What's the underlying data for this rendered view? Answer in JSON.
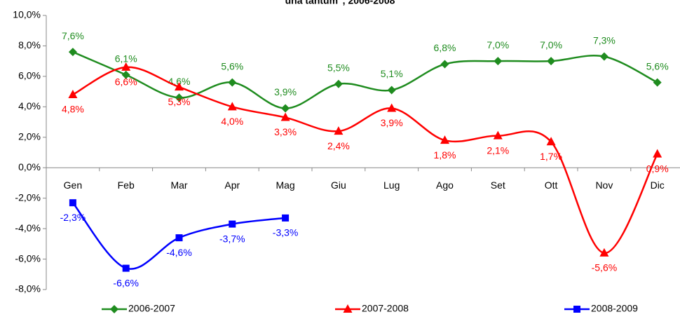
{
  "chart_data": {
    "type": "line",
    "title": "una tantum\", 2006-2008",
    "categories": [
      "Gen",
      "Feb",
      "Mar",
      "Apr",
      "Mag",
      "Giu",
      "Lug",
      "Ago",
      "Set",
      "Ott",
      "Nov",
      "Dic"
    ],
    "ylim": [
      -8,
      10
    ],
    "yticks": [
      {
        "value": -8,
        "label": "-8,0%"
      },
      {
        "value": -6,
        "label": "-6,0%"
      },
      {
        "value": -4,
        "label": "-4,0%"
      },
      {
        "value": -2,
        "label": "-2,0%"
      },
      {
        "value": 0,
        "label": "0,0%"
      },
      {
        "value": 2,
        "label": "2,0%"
      },
      {
        "value": 4,
        "label": "4,0%"
      },
      {
        "value": 6,
        "label": "6,0%"
      },
      {
        "value": 8,
        "label": "8,0%"
      },
      {
        "value": 10,
        "label": "10,0%"
      }
    ],
    "smooth": true,
    "legend": "bottom",
    "series": [
      {
        "name": "2006-2007",
        "color": "#1f8c1f",
        "marker": "diamond",
        "label_position": "above",
        "values": [
          7.6,
          6.1,
          4.6,
          5.6,
          3.9,
          5.5,
          5.1,
          6.8,
          7.0,
          7.0,
          7.3,
          5.6
        ],
        "value_labels": [
          "7,6%",
          "6,1%",
          "4,6%",
          "5,6%",
          "3,9%",
          "5,5%",
          "5,1%",
          "6,8%",
          "7,0%",
          "7,0%",
          "7,3%",
          "5,6%"
        ]
      },
      {
        "name": "2007-2008",
        "color": "#ff0000",
        "marker": "triangle",
        "label_position": "below",
        "values": [
          4.8,
          6.6,
          5.3,
          4.0,
          3.3,
          2.4,
          3.9,
          1.8,
          2.1,
          1.7,
          -5.6,
          0.9
        ],
        "value_labels": [
          "4,8%",
          "6,6%",
          "5,3%",
          "4,0%",
          "3,3%",
          "2,4%",
          "3,9%",
          "1,8%",
          "2,1%",
          "1,7%",
          "-5,6%",
          "0,9%"
        ]
      },
      {
        "name": "2008-2009",
        "color": "#0000ff",
        "marker": "square",
        "label_position": "below",
        "values": [
          -2.3,
          -6.6,
          -4.6,
          -3.7,
          -3.3,
          null,
          null,
          null,
          null,
          null,
          null,
          null
        ],
        "value_labels": [
          "-2,3%",
          "-6,6%",
          "-4,6%",
          "-3,7%",
          "-3,3%",
          null,
          null,
          null,
          null,
          null,
          null,
          null
        ]
      }
    ]
  }
}
